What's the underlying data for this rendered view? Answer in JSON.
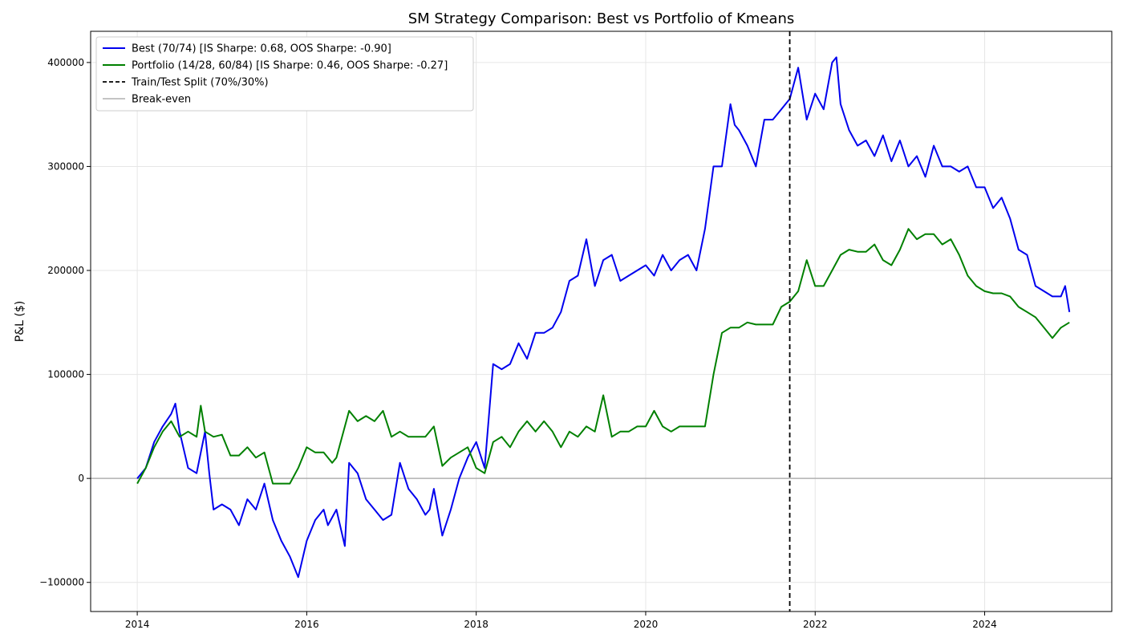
{
  "chart_data": {
    "type": "line",
    "title": "SM Strategy Comparison: Best vs Portfolio of Kmeans",
    "xlabel": "",
    "ylabel": "P&L ($)",
    "xlim": [
      2013.45,
      2025.5
    ],
    "ylim": [
      -128000,
      430000
    ],
    "x_ticks": [
      2014,
      2016,
      2018,
      2020,
      2022,
      2024
    ],
    "x_tick_labels": [
      "2014",
      "2016",
      "2018",
      "2020",
      "2022",
      "2024"
    ],
    "y_ticks": [
      -100000,
      0,
      100000,
      200000,
      300000,
      400000
    ],
    "y_tick_labels": [
      "−100000",
      "0",
      "100000",
      "200000",
      "300000",
      "400000"
    ],
    "grid": true,
    "legend_position": "top-left",
    "vline": {
      "x": 2021.7,
      "label": "Train/Test Split (70%/30%)",
      "color": "#000000",
      "style": "dashed"
    },
    "hline": {
      "y": 0,
      "label": "Break-even",
      "color": "#b0b0b0"
    },
    "series": [
      {
        "name": "Best (70/74) [IS Sharpe: 0.68, OOS Sharpe: -0.90]",
        "color": "#0000ee",
        "x": [
          2014.0,
          2014.1,
          2014.2,
          2014.3,
          2014.4,
          2014.45,
          2014.5,
          2014.6,
          2014.7,
          2014.8,
          2014.85,
          2014.9,
          2015.0,
          2015.1,
          2015.2,
          2015.3,
          2015.4,
          2015.5,
          2015.6,
          2015.7,
          2015.8,
          2015.9,
          2016.0,
          2016.1,
          2016.2,
          2016.25,
          2016.35,
          2016.45,
          2016.5,
          2016.6,
          2016.7,
          2016.8,
          2016.9,
          2017.0,
          2017.1,
          2017.2,
          2017.3,
          2017.4,
          2017.45,
          2017.5,
          2017.6,
          2017.7,
          2017.8,
          2017.9,
          2018.0,
          2018.1,
          2018.15,
          2018.2,
          2018.3,
          2018.4,
          2018.5,
          2018.6,
          2018.7,
          2018.8,
          2018.9,
          2019.0,
          2019.1,
          2019.2,
          2019.3,
          2019.4,
          2019.5,
          2019.6,
          2019.7,
          2019.8,
          2019.9,
          2020.0,
          2020.1,
          2020.2,
          2020.3,
          2020.4,
          2020.5,
          2020.6,
          2020.7,
          2020.8,
          2020.9,
          2021.0,
          2021.05,
          2021.1,
          2021.2,
          2021.3,
          2021.4,
          2021.5,
          2021.6,
          2021.7,
          2021.8,
          2021.9,
          2022.0,
          2022.1,
          2022.2,
          2022.25,
          2022.3,
          2022.4,
          2022.5,
          2022.6,
          2022.7,
          2022.8,
          2022.9,
          2023.0,
          2023.1,
          2023.2,
          2023.3,
          2023.4,
          2023.5,
          2023.6,
          2023.7,
          2023.8,
          2023.9,
          2024.0,
          2024.1,
          2024.2,
          2024.3,
          2024.4,
          2024.5,
          2024.6,
          2024.7,
          2024.8,
          2024.9,
          2024.95,
          2025.0
        ],
        "y": [
          0,
          10000,
          35000,
          50000,
          62000,
          72000,
          45000,
          10000,
          5000,
          45000,
          5000,
          -30000,
          -25000,
          -30000,
          -45000,
          -20000,
          -30000,
          -5000,
          -40000,
          -60000,
          -75000,
          -95000,
          -60000,
          -40000,
          -30000,
          -45000,
          -30000,
          -65000,
          15000,
          5000,
          -20000,
          -30000,
          -40000,
          -35000,
          15000,
          -10000,
          -20000,
          -35000,
          -30000,
          -10000,
          -55000,
          -30000,
          0,
          20000,
          35000,
          10000,
          60000,
          110000,
          105000,
          110000,
          130000,
          115000,
          140000,
          140000,
          145000,
          160000,
          190000,
          195000,
          230000,
          185000,
          210000,
          215000,
          190000,
          195000,
          200000,
          205000,
          195000,
          215000,
          200000,
          210000,
          215000,
          200000,
          240000,
          300000,
          300000,
          360000,
          340000,
          335000,
          320000,
          300000,
          345000,
          345000,
          355000,
          365000,
          395000,
          345000,
          370000,
          355000,
          400000,
          405000,
          360000,
          335000,
          320000,
          325000,
          310000,
          330000,
          305000,
          325000,
          300000,
          310000,
          290000,
          320000,
          300000,
          300000,
          295000,
          300000,
          280000,
          280000,
          260000,
          270000,
          250000,
          220000,
          215000,
          185000,
          180000,
          175000,
          175000,
          185000,
          160000
        ]
      },
      {
        "name": "Portfolio (14/28, 60/84) [IS Sharpe: 0.46, OOS Sharpe: -0.27]",
        "color": "#008000",
        "x": [
          2014.0,
          2014.1,
          2014.2,
          2014.3,
          2014.4,
          2014.5,
          2014.6,
          2014.7,
          2014.75,
          2014.8,
          2014.9,
          2015.0,
          2015.1,
          2015.2,
          2015.3,
          2015.4,
          2015.5,
          2015.6,
          2015.7,
          2015.8,
          2015.9,
          2016.0,
          2016.1,
          2016.2,
          2016.3,
          2016.35,
          2016.5,
          2016.6,
          2016.7,
          2016.8,
          2016.9,
          2017.0,
          2017.1,
          2017.2,
          2017.3,
          2017.4,
          2017.5,
          2017.6,
          2017.7,
          2017.8,
          2017.9,
          2018.0,
          2018.1,
          2018.2,
          2018.3,
          2018.4,
          2018.5,
          2018.6,
          2018.7,
          2018.8,
          2018.9,
          2019.0,
          2019.1,
          2019.2,
          2019.3,
          2019.4,
          2019.5,
          2019.6,
          2019.7,
          2019.8,
          2019.9,
          2020.0,
          2020.1,
          2020.2,
          2020.3,
          2020.4,
          2020.5,
          2020.6,
          2020.7,
          2020.8,
          2020.9,
          2021.0,
          2021.1,
          2021.2,
          2021.3,
          2021.4,
          2021.5,
          2021.6,
          2021.7,
          2021.8,
          2021.9,
          2022.0,
          2022.1,
          2022.2,
          2022.3,
          2022.4,
          2022.5,
          2022.6,
          2022.7,
          2022.8,
          2022.9,
          2023.0,
          2023.1,
          2023.2,
          2023.3,
          2023.4,
          2023.5,
          2023.6,
          2023.7,
          2023.8,
          2023.9,
          2024.0,
          2024.1,
          2024.2,
          2024.3,
          2024.4,
          2024.5,
          2024.6,
          2024.7,
          2024.8,
          2024.9,
          2025.0
        ],
        "y": [
          -5000,
          10000,
          30000,
          45000,
          55000,
          40000,
          45000,
          40000,
          70000,
          45000,
          40000,
          42000,
          22000,
          22000,
          30000,
          20000,
          25000,
          -5000,
          -5000,
          -5000,
          10000,
          30000,
          25000,
          25000,
          15000,
          20000,
          65000,
          55000,
          60000,
          55000,
          65000,
          40000,
          45000,
          40000,
          40000,
          40000,
          50000,
          12000,
          20000,
          25000,
          30000,
          10000,
          5000,
          35000,
          40000,
          30000,
          45000,
          55000,
          45000,
          55000,
          45000,
          30000,
          45000,
          40000,
          50000,
          45000,
          80000,
          40000,
          45000,
          45000,
          50000,
          50000,
          65000,
          50000,
          45000,
          50000,
          50000,
          50000,
          50000,
          100000,
          140000,
          145000,
          145000,
          150000,
          148000,
          148000,
          148000,
          165000,
          170000,
          180000,
          210000,
          185000,
          185000,
          200000,
          215000,
          220000,
          218000,
          218000,
          225000,
          210000,
          205000,
          220000,
          240000,
          230000,
          235000,
          235000,
          225000,
          230000,
          215000,
          195000,
          185000,
          180000,
          178000,
          178000,
          175000,
          165000,
          160000,
          155000,
          145000,
          135000,
          145000,
          150000
        ]
      }
    ],
    "legend": [
      "Best (70/74) [IS Sharpe: 0.68, OOS Sharpe: -0.90]",
      "Portfolio (14/28, 60/84) [IS Sharpe: 0.46, OOS Sharpe: -0.27]",
      "Train/Test Split (70%/30%)",
      "Break-even"
    ]
  }
}
